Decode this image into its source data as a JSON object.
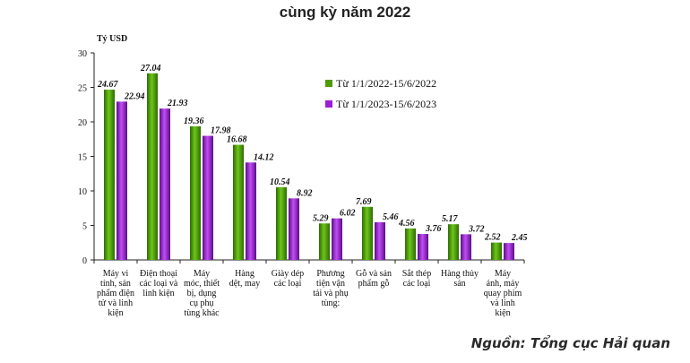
{
  "chart_data": {
    "type": "bar",
    "title": "cùng kỳ năm 2022",
    "ylabel": "Tỷ USD",
    "xlabel": "",
    "ylim": [
      0,
      30
    ],
    "yticks": [
      0,
      5,
      10,
      15,
      20,
      25,
      30
    ],
    "grid": false,
    "legend_position": "right",
    "categories": [
      "Máy vi tính, sản phẩm điện tử và linh kiện",
      "Điện thoại các loại và linh kiện",
      "Máy móc, thiết bị, dụng cụ phụ tùng khác",
      "Hàng dệt, may",
      "Giày dép các loại",
      "Phương tiện vận tải và phụ tùng:",
      "Gỗ và sản phẩm gỗ",
      "Sắt thép các loại",
      "Hàng thủy sản",
      "Máy ảnh, máy quay phim và linh kiện"
    ],
    "category_lines": [
      [
        "Máy vi",
        "tính, sản",
        "phẩm điện",
        "tử và linh",
        "kiện"
      ],
      [
        "Điện thoại",
        "các loại và",
        "linh kiện"
      ],
      [
        "Máy",
        "móc, thiết",
        "bị, dụng",
        "cụ phụ",
        "tùng khác"
      ],
      [
        "Hàng",
        "dệt, may"
      ],
      [
        "Giày dép",
        "các loại"
      ],
      [
        "Phương",
        "tiện vận",
        "tải và phụ",
        "tùng:"
      ],
      [
        "Gỗ và sản",
        "phẩm gỗ"
      ],
      [
        "Sắt thép",
        "các loại"
      ],
      [
        "Hàng thủy",
        "sản"
      ],
      [
        "Máy",
        "ảnh, máy",
        "quay phim",
        "và linh",
        "kiện"
      ]
    ],
    "series": [
      {
        "name": "Từ 1/1/2022-15/6/2022",
        "color": "#4e9a06",
        "values": [
          24.67,
          27.04,
          19.36,
          16.68,
          10.54,
          5.29,
          7.69,
          4.56,
          5.17,
          2.52
        ],
        "labels": [
          "24.67",
          "27.04",
          "19.36",
          "16.68",
          "10.54",
          "5.29",
          "7.69",
          "4.56",
          "5.17",
          "2.52"
        ]
      },
      {
        "name": "Từ 1/1/2023-15/6/2023",
        "color": "#9b1fd6",
        "values": [
          22.94,
          21.93,
          17.98,
          14.12,
          8.92,
          6.02,
          5.46,
          3.76,
          3.72,
          2.45
        ],
        "labels": [
          "22.94",
          "21.93",
          "17.98",
          "14.12",
          "8.92",
          "6.02",
          "5.46",
          "3.76",
          "3.72",
          "2.45"
        ]
      }
    ]
  },
  "source": "Nguồn: Tổng cục Hải quan"
}
